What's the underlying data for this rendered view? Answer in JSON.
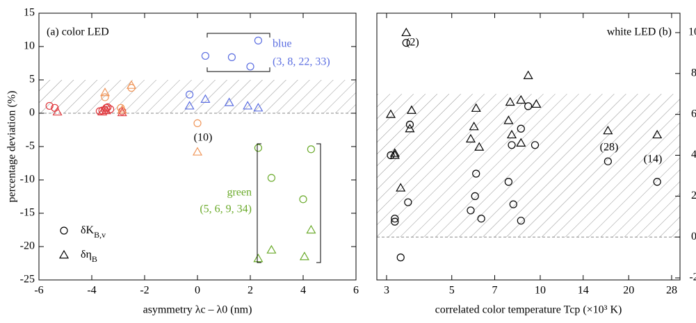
{
  "chart_data": [
    {
      "type": "scatter",
      "xlabel": "asymmetry λc – λ0 (nm)",
      "ylabel": "percentage deviation (%)",
      "xlim": [
        -6,
        6
      ],
      "xticks": [
        -6,
        -4,
        -2,
        0,
        2,
        4,
        6
      ],
      "ylim": [
        -25,
        15
      ],
      "yticks": [
        -25,
        -20,
        -15,
        -10,
        -5,
        0,
        5,
        10,
        15
      ],
      "band": [
        0,
        5
      ],
      "reference_line": 0,
      "annotations": [
        "(a) color LED",
        "blue",
        "(3, 8, 22, 33)",
        "(10)",
        "green",
        "(5, 6, 9, 34)"
      ],
      "annotation_colors": [
        "#000000",
        "#5b6ee1",
        "#5b6ee1",
        "#000000",
        "#6aaa2a",
        "#6aaa2a"
      ],
      "series": [
        {
          "name": "δK",
          "subscript": "B,v",
          "marker": "circle",
          "x": [
            -5.6,
            -5.4,
            -3.7,
            -3.6,
            -3.5,
            -3.45,
            -3.4,
            -3.3,
            -2.85,
            -3.5,
            -2.5,
            -2.9,
            0,
            -0.3,
            0.3,
            1.3,
            2,
            2.3,
            2.3,
            2.8,
            4.0,
            4.3
          ],
          "values": [
            1.1,
            0.8,
            0.3,
            0.4,
            0.5,
            0.8,
            0.9,
            0.6,
            0.3,
            2.4,
            3.8,
            0.8,
            -1.5,
            2.8,
            8.6,
            8.4,
            7,
            10.9,
            -5.2,
            -9.7,
            -12.9,
            -5.4
          ],
          "colors": [
            "#e0393e",
            "#e0393e",
            "#e0393e",
            "#e0393e",
            "#e0393e",
            "#e0393e",
            "#e0393e",
            "#e0393e",
            "#e0393e",
            "#f0965a",
            "#f0965a",
            "#f0965a",
            "#f0965a",
            "#5b6ee1",
            "#5b6ee1",
            "#5b6ee1",
            "#5b6ee1",
            "#5b6ee1",
            "#6aaa2a",
            "#6aaa2a",
            "#6aaa2a",
            "#6aaa2a"
          ]
        },
        {
          "name": "δη",
          "subscript": "B",
          "marker": "triangle",
          "x": [
            -5.3,
            -3.6,
            -3.45,
            -2.85,
            -3.5,
            -2.5,
            -2.85,
            0,
            -0.3,
            0.3,
            1.2,
            1.9,
            2.3,
            2.3,
            2.8,
            4.05,
            4.3
          ],
          "values": [
            0.2,
            0.2,
            0.4,
            0.1,
            3.1,
            4.2,
            0.5,
            -5.8,
            1.1,
            2.1,
            1.6,
            1.1,
            0.8,
            -21.8,
            -20.5,
            -21.5,
            -17.5
          ],
          "colors": [
            "#e0393e",
            "#e0393e",
            "#e0393e",
            "#e0393e",
            "#f0965a",
            "#f0965a",
            "#f0965a",
            "#f0965a",
            "#5b6ee1",
            "#5b6ee1",
            "#5b6ee1",
            "#5b6ee1",
            "#5b6ee1",
            "#6aaa2a",
            "#6aaa2a",
            "#6aaa2a",
            "#6aaa2a"
          ]
        }
      ]
    },
    {
      "type": "scatter",
      "xlabel": "correlated color temperature Tcp (×10³ K)",
      "xlog": true,
      "xlim": [
        2.78,
        29.9
      ],
      "xticks": [
        3,
        5,
        7,
        10,
        14,
        20,
        28
      ],
      "y2lim": [
        -2.1,
        10.95
      ],
      "y2ticks": [
        -2,
        0,
        2,
        4,
        6,
        8,
        10
      ],
      "band": [
        0,
        7
      ],
      "reference_line": 0,
      "annotations": [
        "white LED (b)",
        "(2)",
        "(28)",
        "(14)"
      ],
      "series": [
        {
          "marker": "circle",
          "axis": "y2",
          "color": "#000000",
          "x": [
            3.1,
            3.2,
            3.2,
            3.35,
            3.5,
            3.6,
            3.55,
            5.8,
            6.0,
            6.05,
            6.3,
            7.8,
            8.0,
            8.1,
            8.6,
            8.6,
            9.1,
            9.6,
            17,
            25
          ],
          "values": [
            4.0,
            0.9,
            0.75,
            -1.0,
            9.5,
            5.5,
            1.7,
            1.3,
            2.0,
            3.1,
            0.9,
            2.7,
            4.5,
            1.6,
            5.3,
            0.8,
            6.4,
            4.5,
            3.7,
            2.7
          ]
        },
        {
          "marker": "triangle",
          "axis": "y2",
          "color": "#000000",
          "x": [
            3.1,
            3.2,
            3.2,
            3.35,
            3.5,
            3.6,
            3.65,
            5.8,
            5.95,
            6.05,
            6.2,
            7.8,
            7.9,
            8.0,
            8.6,
            8.6,
            9.1,
            9.7,
            17,
            25
          ],
          "values": [
            6.0,
            4.1,
            4.0,
            2.4,
            10.0,
            5.3,
            6.2,
            4.8,
            5.4,
            6.3,
            4.4,
            5.7,
            6.6,
            5.0,
            6.7,
            4.6,
            7.9,
            6.5,
            5.2,
            5.0
          ]
        }
      ]
    }
  ]
}
